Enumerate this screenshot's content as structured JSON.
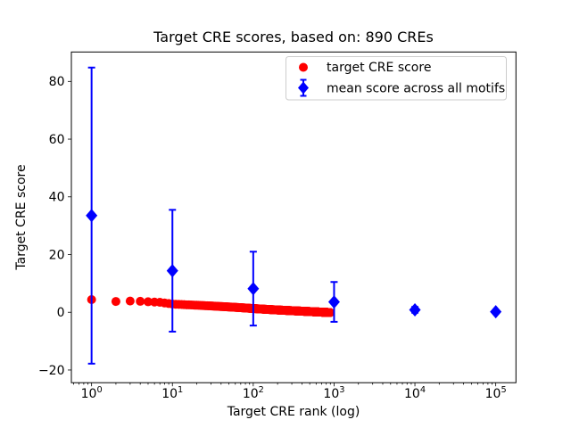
{
  "chart_data": {
    "type": "scatter",
    "title": "Target CRE scores, based on: 890 CREs",
    "xlabel": "Target CRE rank (log)",
    "ylabel": "Target CRE score",
    "x_scale": "log",
    "x_log10_range": [
      -0.25,
      5.25
    ],
    "ylim": [
      -24.4,
      90.2
    ],
    "grid": false,
    "y_ticks": [
      {
        "value": -20,
        "label": "−20"
      },
      {
        "value": 0,
        "label": "0"
      },
      {
        "value": 20,
        "label": "20"
      },
      {
        "value": 40,
        "label": "40"
      },
      {
        "value": 60,
        "label": "60"
      },
      {
        "value": 80,
        "label": "80"
      }
    ],
    "x_major_ticks": [
      {
        "value": 1,
        "base": "10",
        "exp": "0"
      },
      {
        "value": 10,
        "base": "10",
        "exp": "1"
      },
      {
        "value": 100,
        "base": "10",
        "exp": "2"
      },
      {
        "value": 1000,
        "base": "10",
        "exp": "3"
      },
      {
        "value": 10000,
        "base": "10",
        "exp": "4"
      },
      {
        "value": 100000,
        "base": "10",
        "exp": "5"
      }
    ],
    "series": [
      {
        "name": "target CRE score",
        "marker": "circle",
        "color": "#ff0000",
        "n_points": 890,
        "x_is_rank": true,
        "control_points": [
          [
            1,
            4.4
          ],
          [
            2,
            3.75
          ],
          [
            3,
            3.9
          ],
          [
            4,
            3.8
          ],
          [
            5,
            3.65
          ],
          [
            7,
            3.45
          ],
          [
            10,
            2.85
          ],
          [
            15,
            2.6
          ],
          [
            20,
            2.45
          ],
          [
            30,
            2.2
          ],
          [
            50,
            1.85
          ],
          [
            70,
            1.6
          ],
          [
            100,
            1.3
          ],
          [
            150,
            1.0
          ],
          [
            200,
            0.8
          ],
          [
            300,
            0.55
          ],
          [
            500,
            0.25
          ],
          [
            700,
            0.05
          ],
          [
            890,
            -0.1
          ]
        ]
      },
      {
        "name": "mean score across all motifs",
        "marker": "diamond",
        "color": "#0000ff",
        "points": [
          {
            "x": 1,
            "y": 33.5,
            "err": 51.3
          },
          {
            "x": 10,
            "y": 14.4,
            "err": 21.1
          },
          {
            "x": 100,
            "y": 8.2,
            "err": 12.8
          },
          {
            "x": 1000,
            "y": 3.6,
            "err": 6.9
          },
          {
            "x": 10000,
            "y": 0.85,
            "err": 1.0
          },
          {
            "x": 100000,
            "y": 0.2,
            "err": 0.5
          }
        ]
      }
    ]
  },
  "legend": {
    "position": "upper right",
    "entries": [
      {
        "label": "target CRE score",
        "marker": "circle",
        "color": "#ff0000"
      },
      {
        "label": "mean score across all motifs",
        "marker": "diamond",
        "color": "#0000ff"
      }
    ]
  },
  "colors": {
    "red": "#ff0000",
    "blue": "#0000ff",
    "text": "#000000",
    "spine": "#000000",
    "legend_border": "#cccccc",
    "background": "#ffffff"
  }
}
